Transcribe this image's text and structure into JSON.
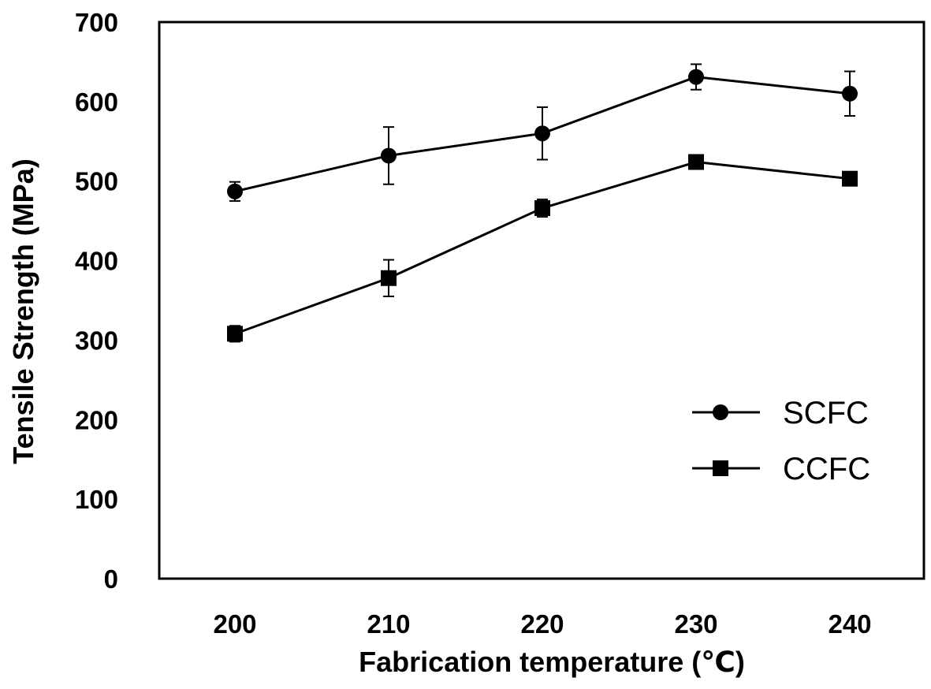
{
  "chart_data": {
    "type": "line",
    "title": "",
    "xlabel": "Fabrication temperature (℃)",
    "ylabel": "Tensile Strength (MPa)",
    "x": [
      200,
      210,
      220,
      230,
      240
    ],
    "x_tick_labels": [
      "200",
      "210",
      "220",
      "230",
      "240"
    ],
    "ylim": [
      0,
      700
    ],
    "y_ticks": [
      0,
      100,
      200,
      300,
      400,
      500,
      600,
      700
    ],
    "y_tick_labels": [
      "0",
      "100",
      "200",
      "300",
      "400",
      "500",
      "600",
      "700"
    ],
    "grid": false,
    "legend_position": "bottom-right",
    "series": [
      {
        "name": "SCFC",
        "marker": "circle",
        "values": [
          487,
          532,
          560,
          631,
          610
        ],
        "error": [
          12,
          36,
          33,
          16,
          28
        ]
      },
      {
        "name": "CCFC",
        "marker": "square",
        "values": [
          308,
          378,
          466,
          524,
          503
        ],
        "error": [
          10,
          23,
          11,
          5,
          5
        ]
      }
    ],
    "colors": {
      "line": "#000000",
      "marker": "#000000"
    }
  }
}
